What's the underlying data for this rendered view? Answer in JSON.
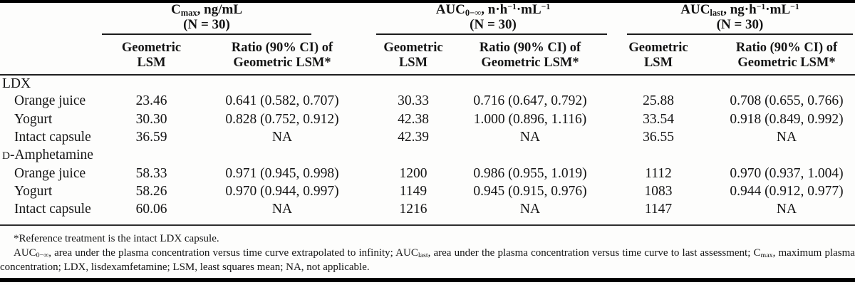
{
  "colors": {
    "background": "#fdfdfc",
    "text": "#141414",
    "rule": "#000000"
  },
  "table": {
    "groups": [
      {
        "title_parts": [
          [
            "n",
            "C"
          ],
          [
            "sub",
            "max"
          ],
          [
            "n",
            ", ng/mL"
          ]
        ],
        "n_label": "(N = 30)",
        "col_geo": {
          "line1": "Geometric",
          "line2": "LSM"
        },
        "col_ratio": {
          "line1": "Ratio (90% CI) of",
          "line2": "Geometric LSM*"
        }
      },
      {
        "title_parts": [
          [
            "n",
            "AUC"
          ],
          [
            "sub",
            "0−∞"
          ],
          [
            "n",
            ", n·h"
          ],
          [
            "sup",
            "−1"
          ],
          [
            "n",
            "·mL"
          ],
          [
            "sup",
            "−1"
          ]
        ],
        "n_label": "(N = 30)",
        "col_geo": {
          "line1": "Geometric",
          "line2": "LSM"
        },
        "col_ratio": {
          "line1": "Ratio (90% CI) of",
          "line2": "Geometric LSM*"
        }
      },
      {
        "title_parts": [
          [
            "n",
            "AUC"
          ],
          [
            "sub",
            "last"
          ],
          [
            "n",
            ", ng·h"
          ],
          [
            "sup",
            "−1"
          ],
          [
            "n",
            "·mL"
          ],
          [
            "sup",
            "−1"
          ]
        ],
        "n_label": "(N = 30)",
        "col_geo": {
          "line1": "Geometric",
          "line2": "LSM"
        },
        "col_ratio": {
          "line1": "Ratio (90% CI) of",
          "line2": "Geometric LSM*"
        }
      }
    ],
    "sections": [
      {
        "label_parts": [
          [
            "n",
            "LDX"
          ]
        ],
        "rows": [
          {
            "label": "Orange juice",
            "cells": [
              "23.46",
              "0.641 (0.582, 0.707)",
              "30.33",
              "0.716 (0.647, 0.792)",
              "25.88",
              "0.708 (0.655, 0.766)"
            ]
          },
          {
            "label": "Yogurt",
            "cells": [
              "30.30",
              "0.828 (0.752, 0.912)",
              "42.38",
              "1.000 (0.896, 1.116)",
              "33.54",
              "0.918 (0.849, 0.992)"
            ]
          },
          {
            "label": "Intact capsule",
            "cells": [
              "36.59",
              "NA",
              "42.39",
              "NA",
              "36.55",
              "NA"
            ]
          }
        ]
      },
      {
        "label_parts": [
          [
            "sc",
            "d"
          ],
          [
            "n",
            "-Amphetamine"
          ]
        ],
        "rows": [
          {
            "label": "Orange juice",
            "cells": [
              "58.33",
              "0.971 (0.945, 0.998)",
              "1200",
              "0.986 (0.955, 1.019)",
              "1112",
              "0.970 (0.937, 1.004)"
            ]
          },
          {
            "label": "Yogurt",
            "cells": [
              "58.26",
              "0.970 (0.944, 0.997)",
              "1149",
              "0.945 (0.915, 0.976)",
              "1083",
              "0.944 (0.912, 0.977)"
            ]
          },
          {
            "label": "Intact capsule",
            "cells": [
              "60.06",
              "NA",
              "1216",
              "NA",
              "1147",
              "NA"
            ]
          }
        ]
      }
    ]
  },
  "footnotes": {
    "line1": "*Reference treatment is the intact LDX capsule.",
    "para2_parts": [
      [
        "n",
        "AUC"
      ],
      [
        "sub",
        "0−∞"
      ],
      [
        "n",
        ", area under the plasma concentration versus time curve extrapolated to infinity; AUC"
      ],
      [
        "sub",
        "last"
      ],
      [
        "n",
        ", area under the plasma concentration versus time curve to last assessment; C"
      ],
      [
        "sub",
        "max"
      ],
      [
        "n",
        ", maximum plasma concentration; LDX, lisdexamfetamine; LSM, least squares mean; NA, not applicable."
      ]
    ]
  }
}
